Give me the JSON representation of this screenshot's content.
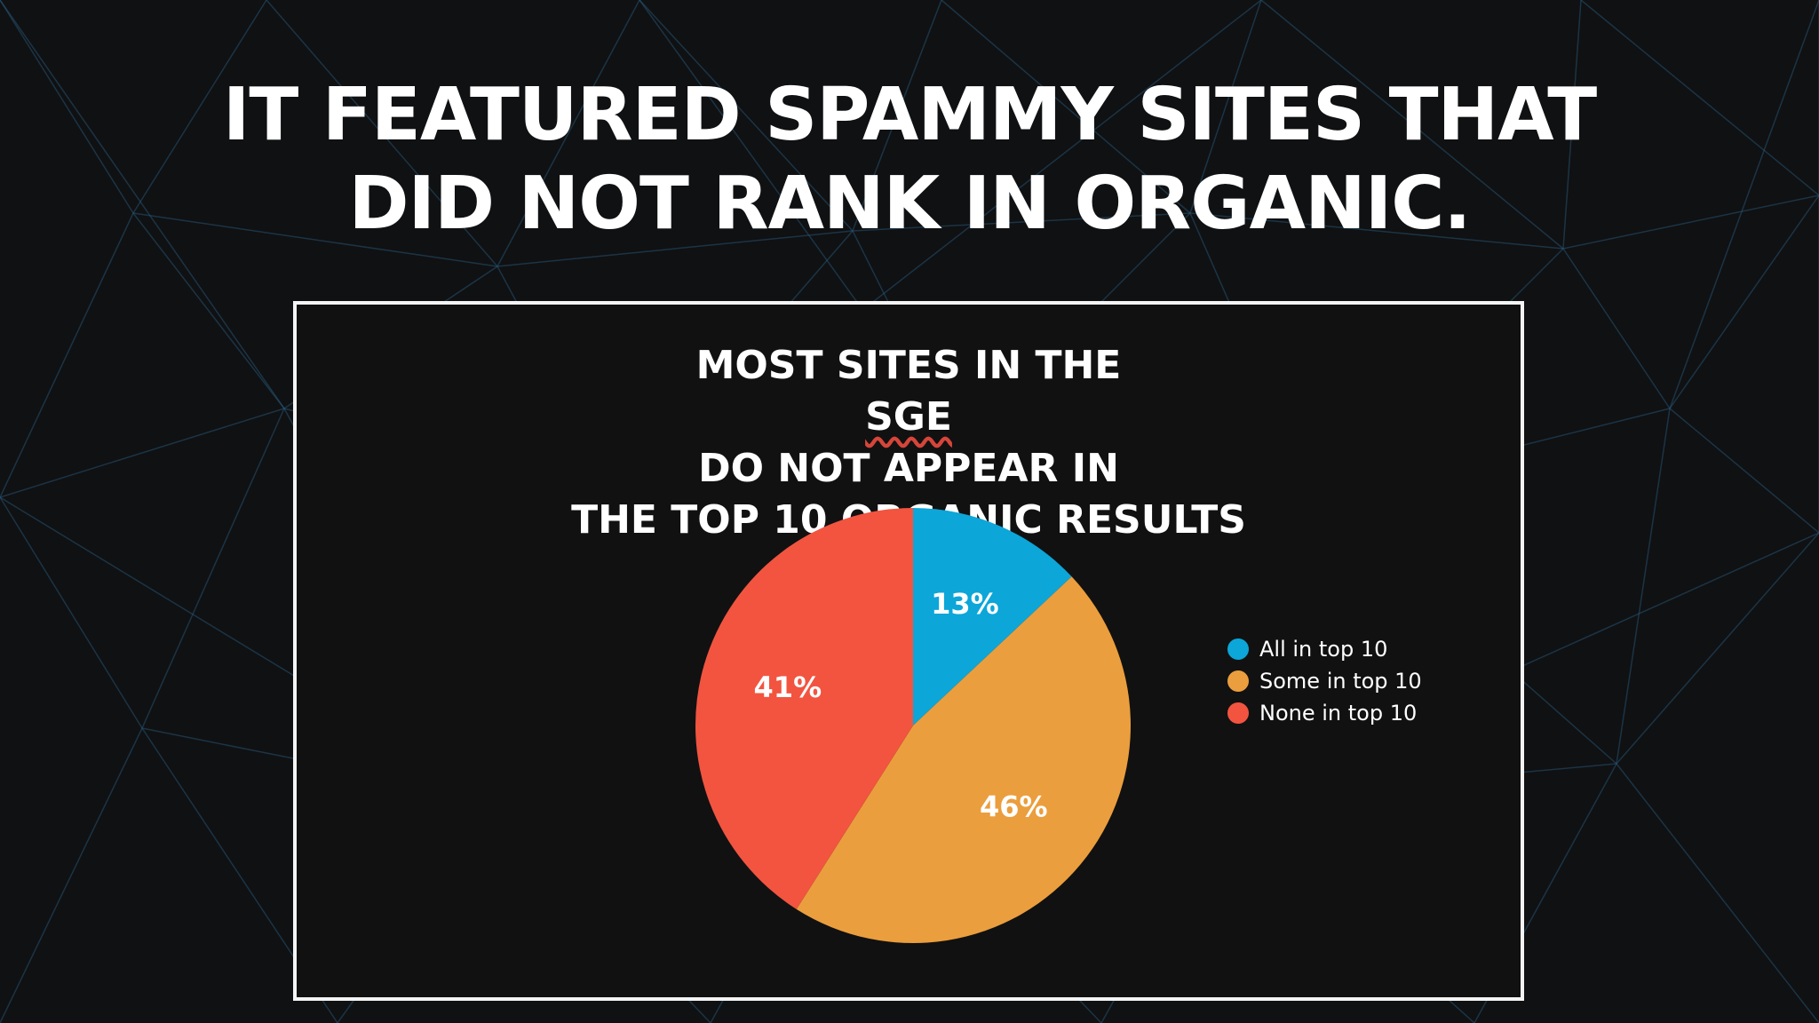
{
  "slide": {
    "headline_line1": "IT FEATURED SPAMMY SITES THAT",
    "headline_line2": "DID NOT RANK IN ORGANIC.",
    "background_color": "#101113",
    "pattern_color": "#2a5f83"
  },
  "chart_data": {
    "type": "pie",
    "title": "MOST SITES IN THE SGE DO NOT APPEAR IN THE TOP 10 ORGANIC RESULTS",
    "title_line1_before": "MOST SITES IN THE ",
    "title_line1_emph": "SGE",
    "title_line1_after": " DO NOT APPEAR IN",
    "title_line2": "THE TOP 10 ORGANIC RESULTS",
    "categories": [
      "All in top 10",
      "Some in top 10",
      "None in top 10"
    ],
    "values": [
      13,
      46,
      41
    ],
    "labels": [
      "13%",
      "46%",
      "41%"
    ],
    "colors": [
      "#0ca6d9",
      "#eb9e3d",
      "#f25440"
    ],
    "start_angle": "12 o'clock",
    "direction": "clockwise",
    "legend_position": "right"
  }
}
